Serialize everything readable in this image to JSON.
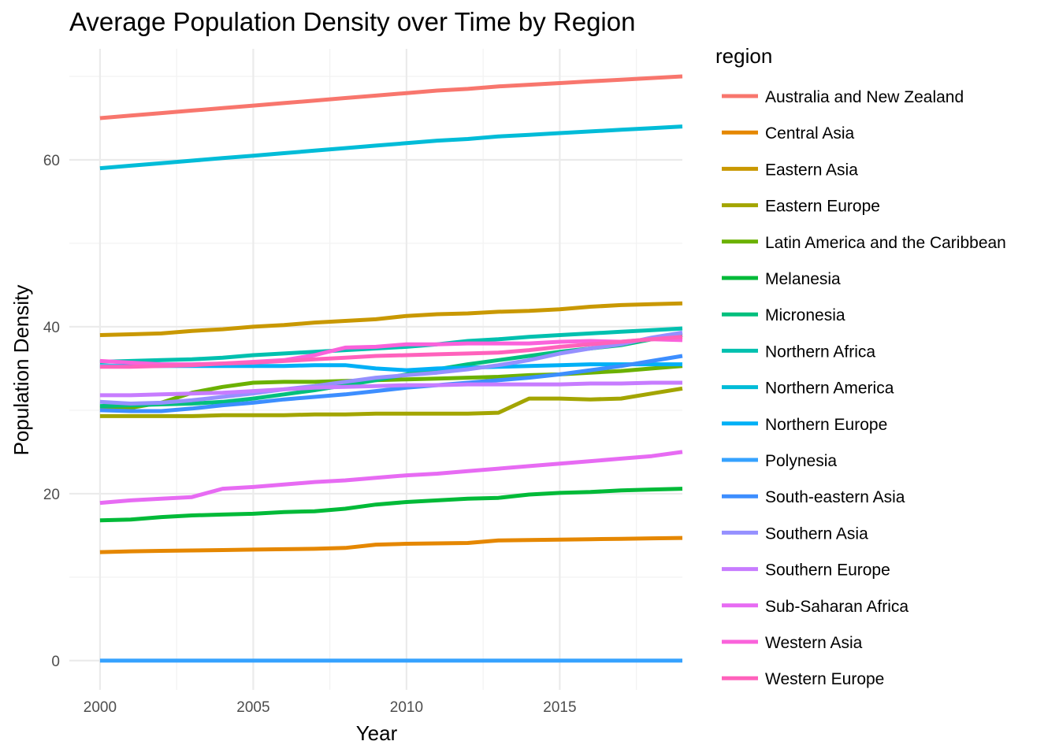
{
  "chart_data": {
    "type": "line",
    "title": "Average Population Density over Time by Region",
    "xlabel": "Year",
    "ylabel": "Population Density",
    "legend_title": "region",
    "legend_position": "right",
    "xlim": [
      1999.0,
      2019.0
    ],
    "ylim": [
      -3.5,
      73.3
    ],
    "x_ticks": [
      2000,
      2005,
      2010,
      2015
    ],
    "y_ticks": [
      0,
      20,
      40,
      60
    ],
    "grid": true,
    "x": [
      2000,
      2001,
      2002,
      2003,
      2004,
      2005,
      2006,
      2007,
      2008,
      2009,
      2010,
      2011,
      2012,
      2013,
      2014,
      2015,
      2016,
      2017,
      2018,
      2019
    ],
    "series": [
      {
        "name": "Australia and New Zealand",
        "color": "#F8766D",
        "values": [
          65.0,
          65.3,
          65.6,
          65.9,
          66.2,
          66.5,
          66.8,
          67.1,
          67.4,
          67.7,
          68.0,
          68.3,
          68.5,
          68.8,
          69.0,
          69.2,
          69.4,
          69.6,
          69.8,
          70.0
        ]
      },
      {
        "name": "Central Asia",
        "color": "#E58700",
        "values": [
          13.0,
          13.1,
          13.15,
          13.2,
          13.25,
          13.3,
          13.35,
          13.4,
          13.5,
          13.9,
          14.0,
          14.05,
          14.1,
          14.4,
          14.45,
          14.5,
          14.55,
          14.6,
          14.65,
          14.7
        ]
      },
      {
        "name": "Eastern Asia",
        "color": "#C99800",
        "values": [
          39.0,
          39.1,
          39.2,
          39.5,
          39.7,
          40.0,
          40.2,
          40.5,
          40.7,
          40.9,
          41.3,
          41.5,
          41.6,
          41.8,
          41.9,
          42.1,
          42.4,
          42.6,
          42.7,
          42.8
        ]
      },
      {
        "name": "Eastern Europe",
        "color": "#A3A500",
        "values": [
          29.3,
          29.3,
          29.3,
          29.3,
          29.4,
          29.4,
          29.4,
          29.5,
          29.5,
          29.6,
          29.6,
          29.6,
          29.6,
          29.7,
          31.4,
          31.4,
          31.3,
          31.4,
          32.0,
          32.6
        ]
      },
      {
        "name": "Latin America and the Caribbean",
        "color": "#6BB100",
        "values": [
          30.3,
          30.3,
          30.9,
          32.1,
          32.8,
          33.3,
          33.4,
          33.4,
          33.5,
          33.6,
          33.7,
          33.8,
          33.9,
          34.0,
          34.2,
          34.3,
          34.5,
          34.7,
          35.0,
          35.3
        ]
      },
      {
        "name": "Melanesia",
        "color": "#00BA38",
        "values": [
          16.8,
          16.9,
          17.2,
          17.4,
          17.5,
          17.6,
          17.8,
          17.9,
          18.2,
          18.7,
          19.0,
          19.2,
          19.4,
          19.5,
          19.9,
          20.1,
          20.2,
          20.4,
          20.5,
          20.6
        ]
      },
      {
        "name": "Micronesia",
        "color": "#00BF7D",
        "values": [
          30.5,
          30.6,
          30.7,
          30.8,
          31.0,
          31.4,
          31.9,
          32.4,
          33.0,
          33.6,
          34.3,
          34.9,
          35.5,
          36.0,
          36.5,
          37.0,
          37.4,
          37.8,
          38.5,
          39.0
        ]
      },
      {
        "name": "Northern Africa",
        "color": "#00C0AF",
        "values": [
          35.8,
          35.9,
          36.0,
          36.1,
          36.3,
          36.6,
          36.8,
          37.0,
          37.2,
          37.4,
          37.6,
          37.9,
          38.3,
          38.5,
          38.8,
          39.0,
          39.2,
          39.4,
          39.6,
          39.8
        ]
      },
      {
        "name": "Northern America",
        "color": "#00BCD8",
        "values": [
          59.0,
          59.3,
          59.6,
          59.9,
          60.2,
          60.5,
          60.8,
          61.1,
          61.4,
          61.7,
          62.0,
          62.3,
          62.5,
          62.8,
          63.0,
          63.2,
          63.4,
          63.6,
          63.8,
          64.0
        ]
      },
      {
        "name": "Northern Europe",
        "color": "#00B0F6",
        "values": [
          35.3,
          35.3,
          35.3,
          35.3,
          35.3,
          35.3,
          35.3,
          35.4,
          35.4,
          35.0,
          34.8,
          35.0,
          35.1,
          35.2,
          35.3,
          35.4,
          35.5,
          35.5,
          35.5,
          35.5
        ]
      },
      {
        "name": "Polynesia",
        "color": "#35A2FF",
        "values": [
          0,
          0,
          0,
          0,
          0,
          0,
          0,
          0,
          0,
          0,
          0,
          0,
          0,
          0,
          0,
          0,
          0,
          0,
          0,
          0
        ]
      },
      {
        "name": "South-eastern Asia",
        "color": "#3D8EFF",
        "values": [
          30.0,
          29.9,
          29.9,
          30.2,
          30.6,
          30.9,
          31.3,
          31.6,
          31.9,
          32.3,
          32.7,
          33.0,
          33.3,
          33.6,
          33.9,
          34.3,
          34.8,
          35.3,
          35.9,
          36.5
        ]
      },
      {
        "name": "Southern Asia",
        "color": "#9590FF",
        "values": [
          31.0,
          30.8,
          30.9,
          31.2,
          31.6,
          32.0,
          32.5,
          32.9,
          33.4,
          33.9,
          34.2,
          34.5,
          34.9,
          35.4,
          36.0,
          36.8,
          37.4,
          37.9,
          38.7,
          39.3
        ]
      },
      {
        "name": "Southern Europe",
        "color": "#C77CFF",
        "values": [
          31.8,
          31.8,
          31.9,
          32.0,
          32.1,
          32.3,
          32.5,
          32.7,
          32.8,
          32.9,
          33.0,
          33.0,
          33.1,
          33.1,
          33.1,
          33.1,
          33.2,
          33.2,
          33.3,
          33.3
        ]
      },
      {
        "name": "Sub-Saharan Africa",
        "color": "#E76BF3",
        "values": [
          18.9,
          19.2,
          19.4,
          19.6,
          20.6,
          20.8,
          21.1,
          21.4,
          21.6,
          21.9,
          22.2,
          22.4,
          22.7,
          23.0,
          23.3,
          23.6,
          23.9,
          24.2,
          24.5,
          25.0
        ]
      },
      {
        "name": "Western Asia",
        "color": "#FA62DB",
        "values": [
          35.9,
          35.7,
          35.5,
          35.5,
          35.6,
          35.8,
          36.0,
          36.6,
          37.5,
          37.6,
          37.9,
          37.9,
          38.0,
          38.0,
          38.0,
          38.2,
          38.3,
          38.2,
          38.5,
          38.4
        ]
      },
      {
        "name": "Western Europe",
        "color": "#FF62BC",
        "values": [
          35.2,
          35.2,
          35.3,
          35.4,
          35.6,
          35.7,
          35.9,
          36.1,
          36.3,
          36.5,
          36.6,
          36.7,
          36.8,
          36.9,
          37.2,
          37.6,
          37.9,
          38.2,
          38.5,
          38.8
        ]
      }
    ]
  }
}
